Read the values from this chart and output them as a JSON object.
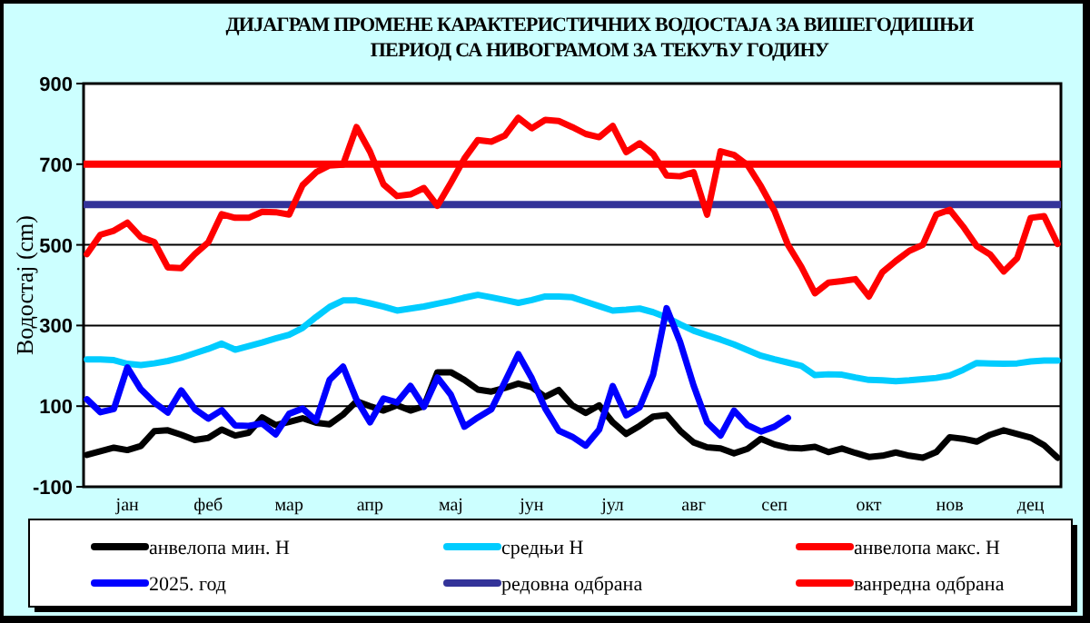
{
  "chart_data": {
    "type": "line",
    "title": "ДИЈАГРАМ ПРОМЕНЕ КАРАКТЕРИСТИЧНИХ ВОДОСТАЈА ЗА ВИШЕГОДИШЊИ ПЕРИОД СА НИВОГРАМОМ ЗА ТЕКУЋУ ГОДИНУ",
    "ylabel": "Водостај (cm)",
    "categories": [
      null,
      null,
      null,
      "јан",
      null,
      null,
      null,
      null,
      null,
      "феб",
      null,
      null,
      null,
      null,
      null,
      "мар",
      null,
      null,
      null,
      null,
      null,
      "апр",
      null,
      null,
      null,
      null,
      null,
      "мај",
      null,
      null,
      null,
      null,
      null,
      "јун",
      null,
      null,
      null,
      null,
      null,
      "јул",
      null,
      null,
      null,
      null,
      null,
      "авг",
      null,
      null,
      null,
      null,
      null,
      "сеп",
      null,
      null,
      null,
      null,
      null,
      null,
      "окт",
      null,
      null,
      null,
      null,
      null,
      "нов",
      null,
      null,
      null,
      null,
      null,
      "дец",
      null,
      null
    ],
    "ylim": [
      -100,
      900
    ],
    "yticks": [
      -100,
      100,
      300,
      500,
      700,
      900
    ],
    "grid": "y",
    "legend": "bottom",
    "line_style": "solid",
    "series": [
      {
        "name": "анвелопа мин. Н",
        "color": "#000000",
        "values": [
          -21,
          -12,
          -3,
          -9,
          1,
          38,
          40,
          29,
          16,
          21,
          42,
          27,
          34,
          72,
          53,
          61,
          70,
          59,
          55,
          79,
          112,
          100,
          89,
          102,
          89,
          100,
          184,
          184,
          165,
          141,
          136,
          145,
          156,
          147,
          123,
          140,
          102,
          83,
          102,
          60,
          31,
          51,
          74,
          78,
          39,
          10,
          -2,
          -5,
          -17,
          -6,
          19,
          5,
          -3,
          -5,
          -1,
          -14,
          -5,
          -16,
          -26,
          -23,
          -15,
          -23,
          -28,
          -14,
          23,
          19,
          12,
          29,
          40,
          31,
          22,
          3,
          -28
        ]
      },
      {
        "name": "средњи Н",
        "color": "#00ccff",
        "values": [
          216,
          216,
          214,
          205,
          202,
          206,
          212,
          220,
          231,
          242,
          255,
          240,
          249,
          258,
          268,
          277,
          294,
          321,
          346,
          362,
          362,
          355,
          347,
          337,
          342,
          347,
          354,
          361,
          369,
          376,
          370,
          363,
          356,
          363,
          372,
          372,
          370,
          359,
          348,
          337,
          339,
          342,
          333,
          320,
          303,
          287,
          276,
          265,
          253,
          239,
          225,
          216,
          208,
          200,
          177,
          179,
          178,
          171,
          165,
          164,
          162,
          164,
          167,
          170,
          176,
          190,
          207,
          206,
          205,
          206,
          211,
          213,
          213
        ]
      },
      {
        "name": "анвелопа макс. Н",
        "color": "#ff0000",
        "values": [
          477,
          525,
          535,
          555,
          519,
          507,
          444,
          442,
          477,
          506,
          576,
          567,
          567,
          582,
          581,
          575,
          648,
          680,
          697,
          699,
          792,
          731,
          650,
          621,
          625,
          641,
          597,
          654,
          714,
          760,
          756,
          771,
          815,
          789,
          810,
          807,
          792,
          775,
          767,
          795,
          730,
          752,
          725,
          672,
          670,
          680,
          575,
          732,
          723,
          698,
          645,
          584,
          500,
          445,
          380,
          406,
          410,
          415,
          372,
          432,
          460,
          485,
          500,
          575,
          587,
          545,
          497,
          476,
          434,
          467,
          567,
          571,
          502
        ]
      },
      {
        "name": "2025. год",
        "color": "#0000ff",
        "values": [
          117,
          85,
          93,
          196,
          142,
          109,
          84,
          139,
          93,
          69,
          90,
          52,
          51,
          57,
          30,
          81,
          94,
          64,
          165,
          198,
          116,
          60,
          119,
          109,
          150,
          98,
          171,
          128,
          49,
          72,
          92,
          160,
          229,
          169,
          94,
          39,
          24,
          2,
          42,
          150,
          77,
          97,
          178,
          343,
          259,
          151,
          60,
          27,
          89,
          53,
          37,
          49,
          71,
          null,
          null,
          null,
          null,
          null,
          null,
          null,
          null,
          null,
          null,
          null,
          null,
          null,
          null,
          null,
          null,
          null,
          null,
          null,
          null
        ]
      }
    ],
    "ref_lines": [
      {
        "axis": "y",
        "value": 600,
        "label": "редовна одбрана",
        "color": "#333399"
      },
      {
        "axis": "y",
        "value": 700,
        "label": "ванредна одбрана",
        "color": "#ff0000"
      }
    ]
  }
}
